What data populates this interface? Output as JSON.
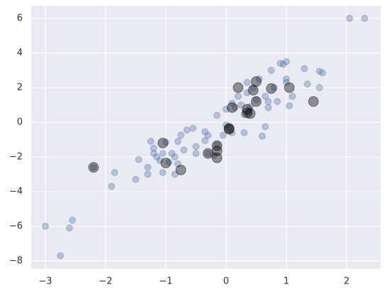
{
  "chart_data": {
    "type": "scatter",
    "xlim": [
      -3.235,
      2.565
    ],
    "ylim": [
      -8.45,
      6.73
    ],
    "xticks": [
      {
        "value": -3,
        "label": "−3"
      },
      {
        "value": -2,
        "label": "−2"
      },
      {
        "value": -1,
        "label": "−1"
      },
      0,
      1,
      2
    ],
    "yticks": [
      {
        "value": -8,
        "label": "−8"
      },
      {
        "value": -6,
        "label": "−6"
      },
      {
        "value": -4,
        "label": "−4"
      },
      {
        "value": -2,
        "label": "−2"
      },
      0,
      2,
      4,
      6
    ],
    "grid": true,
    "background": "#eaeaf2",
    "series": [
      {
        "color": "#4c72b0",
        "opacity": 0.35,
        "size": 4.5,
        "x": [
          -3.0,
          -2.75,
          -2.6,
          -2.55,
          -2.2,
          -1.9,
          -1.85,
          -1.5,
          -1.45,
          -1.3,
          -1.3,
          -1.25,
          -1.2,
          -1.2,
          -1.15,
          -1.1,
          -1.05,
          -1.05,
          -1.0,
          -0.95,
          -0.9,
          -0.85,
          -0.85,
          -0.8,
          -0.8,
          -0.75,
          -0.7,
          -0.65,
          -0.55,
          -0.5,
          -0.5,
          -0.35,
          -0.35,
          -0.3,
          -0.3,
          -0.2,
          -0.15,
          -0.15,
          -0.05,
          0.0,
          0.0,
          0.05,
          0.1,
          0.1,
          0.15,
          0.2,
          0.25,
          0.3,
          0.3,
          0.35,
          0.35,
          0.4,
          0.45,
          0.5,
          0.55,
          0.6,
          0.65,
          0.65,
          0.7,
          0.7,
          0.75,
          0.8,
          0.85,
          0.9,
          0.95,
          1.0,
          1.0,
          1.0,
          1.05,
          1.1,
          1.3,
          1.35,
          1.55,
          1.55,
          1.6,
          2.05,
          2.3
        ],
        "values": [
          -6.0,
          -7.7,
          -6.1,
          -5.65,
          -2.6,
          -3.7,
          -2.9,
          -3.3,
          -2.15,
          -3.0,
          -2.6,
          -1.1,
          -1.5,
          -1.8,
          -2.0,
          -2.2,
          -2.9,
          -1.8,
          -1.15,
          -2.3,
          -1.8,
          -3.0,
          -2.0,
          -2.4,
          -1.1,
          -0.75,
          -1.6,
          -0.45,
          -0.35,
          -1.8,
          -1.4,
          -1.05,
          -0.55,
          -1.8,
          -0.75,
          -1.9,
          -1.3,
          0.4,
          -0.75,
          -0.15,
          0.75,
          -0.3,
          -0.6,
          1.1,
          0.85,
          1.5,
          1.0,
          -0.6,
          0.45,
          1.7,
          2.3,
          0.9,
          2.0,
          1.3,
          2.5,
          -0.8,
          1.5,
          -0.25,
          0.85,
          1.2,
          3.0,
          2.0,
          1.2,
          3.4,
          3.35,
          3.5,
          2.5,
          2.3,
          0.95,
          1.5,
          3.1,
          2.2,
          2.0,
          2.95,
          2.85,
          6.0,
          6.0
        ]
      },
      {
        "color": "#000000",
        "opacity": 0.4,
        "size": 7,
        "x": [
          -2.2,
          -1.05,
          -1.0,
          -0.75,
          -0.3,
          -0.15,
          -0.15,
          -0.15,
          0.05,
          0.05,
          0.1,
          0.2,
          0.35,
          0.35,
          0.4,
          0.45,
          0.5,
          0.5,
          0.75,
          1.05,
          1.45
        ],
        "values": [
          -2.6,
          -1.2,
          -2.35,
          -2.75,
          -1.8,
          -1.35,
          -1.65,
          -2.05,
          -0.35,
          -0.4,
          0.85,
          2.0,
          0.55,
          0.75,
          0.5,
          1.85,
          1.2,
          2.35,
          1.95,
          2.0,
          1.2
        ]
      }
    ]
  }
}
